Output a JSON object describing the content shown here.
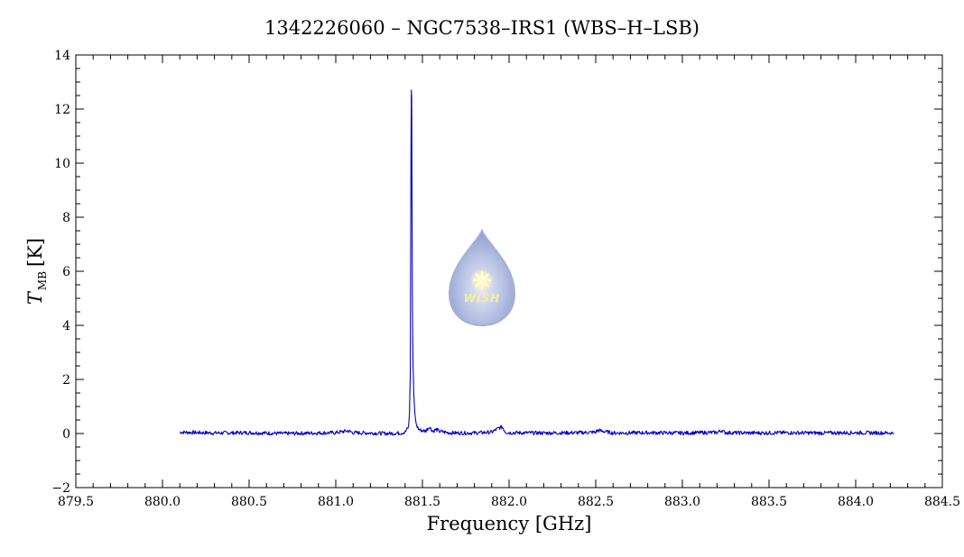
{
  "chart_data": {
    "type": "line",
    "title": "1342226060 – NGC7538–IRS1 (WBS–H–LSB)",
    "xlabel": "Frequency [GHz]",
    "ylabel_main": "T",
    "ylabel_sub": "MB",
    "ylabel_unit": "[K]",
    "xlim": [
      879.5,
      884.5
    ],
    "ylim": [
      -2,
      14
    ],
    "x_major_ticks": [
      879.5,
      880.0,
      880.5,
      881.0,
      881.5,
      882.0,
      882.5,
      883.0,
      883.5,
      884.0,
      884.5
    ],
    "x_tick_labels": [
      "879.5",
      "880.0",
      "880.5",
      "881.0",
      "881.5",
      "882.0",
      "882.5",
      "883.0",
      "883.5",
      "884.0",
      "884.5"
    ],
    "y_major_ticks": [
      -2,
      0,
      2,
      4,
      6,
      8,
      10,
      12,
      14
    ],
    "y_tick_labels": [
      "−2",
      "0",
      "2",
      "4",
      "6",
      "8",
      "10",
      "12",
      "14"
    ],
    "grid": false,
    "series_color": "#0000c8",
    "x": [
      880.1,
      880.3,
      880.5,
      880.7,
      880.9,
      881.0,
      881.07,
      881.1,
      881.2,
      881.3,
      881.38,
      881.4,
      881.42,
      881.425,
      881.43,
      881.432,
      881.434,
      881.436,
      881.438,
      881.44,
      881.442,
      881.444,
      881.446,
      881.448,
      881.45,
      881.455,
      881.46,
      881.465,
      881.47,
      881.48,
      881.5,
      881.52,
      881.54,
      881.56,
      881.58,
      881.6,
      881.65,
      881.7,
      881.8,
      881.9,
      881.94,
      881.96,
      881.98,
      882.0,
      882.2,
      882.4,
      882.5,
      882.51,
      882.6,
      882.8,
      883.0,
      883.2,
      883.23,
      883.24,
      883.26,
      883.4,
      883.6,
      883.8,
      884.0,
      884.22
    ],
    "y": [
      0.05,
      0.02,
      0.03,
      0.0,
      0.02,
      0.03,
      0.1,
      0.03,
      0.02,
      0.0,
      0.02,
      0.05,
      0.25,
      0.7,
      2.2,
      6.6,
      10.5,
      12.7,
      12.4,
      8.4,
      5.0,
      3.5,
      2.5,
      2.1,
      1.5,
      0.9,
      0.5,
      0.35,
      0.25,
      0.15,
      0.1,
      0.1,
      0.25,
      0.08,
      0.15,
      0.08,
      0.03,
      0.02,
      0.02,
      0.05,
      0.2,
      0.25,
      0.05,
      0.03,
      0.02,
      0.03,
      0.05,
      0.12,
      0.02,
      0.03,
      0.02,
      0.04,
      0.12,
      0.05,
      0.03,
      0.02,
      0.03,
      0.02,
      0.03,
      0.02
    ]
  },
  "logo": {
    "text": "WISH"
  }
}
